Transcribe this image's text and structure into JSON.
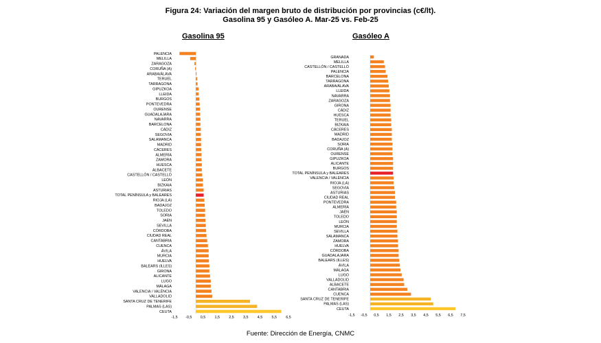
{
  "figure": {
    "title_line1": "Figura 24: Variación del margen bruto de distribución por provincias (c€/lt).",
    "title_line2": "Gasolina 95 y Gasóleo A. Mar-25 vs. Feb-25",
    "source": "Fuente: Dirección de Energía, CNMC"
  },
  "colors": {
    "regular": "#F58220",
    "highlight": "#E8202A",
    "canarias": "#F6B325",
    "ceuta": "#FFC72C",
    "grid": "#c8c8c8"
  },
  "chart_data": [
    {
      "type": "bar",
      "orientation": "horizontal",
      "title": "Gasolina 95",
      "xlim": [
        -1.5,
        6.5
      ],
      "xticks": [
        -1.5,
        -0.5,
        0.5,
        1.5,
        2.5,
        3.5,
        4.5,
        5.5,
        6.5
      ],
      "xtick_labels": [
        "-1,5",
        "-0,5",
        "0,5",
        "1,5",
        "2,5",
        "3,5",
        "4,5",
        "5,5",
        "6,5"
      ],
      "highlight": "TOTAL PENÍNSULA y BALEARES",
      "categories": [
        "PALENCIA",
        "MELILLA",
        "ZARAGOZA",
        "CORUÑA (A)",
        "ARABA/ÁLAVA",
        "TERUEL",
        "TARRAGONA",
        "GIPUZKOA",
        "LLEIDA",
        "BURGOS",
        "PONTEVEDRA",
        "OURENSE",
        "GUADALAJARA",
        "NAVARRA",
        "BARCELONA",
        "CÁDIZ",
        "SEGOVIA",
        "SALAMANCA",
        "MADRID",
        "CÁCERES",
        "ALMERÍA",
        "ZAMORA",
        "HUESCA",
        "ALBACETE",
        "CASTELLÓN / CASTELLÓ",
        "LEÓN",
        "BIZKAIA",
        "ASTURIAS",
        "TOTAL PENÍNSULA y BALEARES",
        "RIOJA (LA)",
        "BADAJOZ",
        "TOLEDO",
        "SORIA",
        "JAÉN",
        "SEVILLA",
        "CÓRDOBA",
        "CIUDAD REAL",
        "CANTABRIA",
        "CUENCA",
        "ÁVILA",
        "MURCIA",
        "HUELVA",
        "BALEARS (ILLES)",
        "GIRONA",
        "ALICANTE",
        "LUGO",
        "MÁLAGA",
        "VALENCIA / VALÈNCIA",
        "VALLADOLID",
        "SANTA CRUZ DE TENERIFE",
        "PALMAS (LAS)",
        "CEUTA"
      ],
      "values": [
        -1.15,
        -0.4,
        -0.1,
        -0.05,
        0.05,
        0.1,
        0.12,
        0.2,
        0.2,
        0.25,
        0.27,
        0.3,
        0.3,
        0.32,
        0.32,
        0.35,
        0.35,
        0.37,
        0.37,
        0.38,
        0.4,
        0.4,
        0.42,
        0.42,
        0.45,
        0.5,
        0.5,
        0.55,
        0.55,
        0.6,
        0.62,
        0.65,
        0.65,
        0.68,
        0.7,
        0.72,
        0.75,
        0.8,
        0.85,
        0.9,
        0.9,
        0.92,
        0.95,
        0.95,
        1.0,
        1.05,
        1.05,
        1.1,
        1.15,
        3.8,
        4.3,
        6.0
      ]
    },
    {
      "type": "bar",
      "orientation": "horizontal",
      "title": "Gasóleo A",
      "xlim": [
        -1.5,
        7.5
      ],
      "xticks": [
        -1.5,
        -0.5,
        0.5,
        1.5,
        2.5,
        3.5,
        4.5,
        5.5,
        6.5,
        7.5
      ],
      "xtick_labels": [
        "-1,5",
        "-0,5",
        "0,5",
        "1,5",
        "2,5",
        "3,5",
        "4,5",
        "5,5",
        "6,5",
        "7,5"
      ],
      "highlight": "TOTAL PENÍNSULA y BALEARES",
      "categories": [
        "GRANADA",
        "MELILLA",
        "CASTELLÓN / CASTELLÓ",
        "PALENCIA",
        "BARCELONA",
        "TARRAGONA",
        "ARABA/ÁLAVA",
        "LLEIDA",
        "NAVARRA",
        "ZARAGOZA",
        "GIRONA",
        "CÁDIZ",
        "HUESCA",
        "TERUEL",
        "BIZKAIA",
        "CÁCERES",
        "MADRID",
        "BADAJOZ",
        "SORIA",
        "CORUÑA (A)",
        "OURENSE",
        "GIPUZKOA",
        "ALICANTE",
        "BURGOS",
        "TOTAL PENÍNSULA y BALEARES",
        "VALENCIA / VALÈNCIA",
        "RIOJA (LA)",
        "SEGOVIA",
        "ASTURIAS",
        "CIUDAD REAL",
        "PONTEVEDRA",
        "ALMERÍA",
        "JAÉN",
        "TOLEDO",
        "LEÓN",
        "MURCIA",
        "SEVILLA",
        "SALAMANCA",
        "ZAMORA",
        "HUELVA",
        "CÓRDOBA",
        "GUADALAJARA",
        "BALEARS (ILLES)",
        "ÁVILA",
        "MÁLAGA",
        "LUGO",
        "VALLADOLID",
        "ALBACETE",
        "CANTABRIA",
        "CUENCA",
        "SANTA CRUZ DE TENERIFE",
        "PALMAS (LAS)",
        "CEUTA"
      ],
      "values": [
        0.3,
        1.1,
        1.2,
        1.25,
        1.4,
        1.45,
        1.5,
        1.55,
        1.6,
        1.6,
        1.65,
        1.65,
        1.65,
        1.7,
        1.7,
        1.75,
        1.75,
        1.75,
        1.8,
        1.8,
        1.8,
        1.85,
        1.85,
        1.85,
        1.85,
        1.9,
        1.9,
        1.95,
        2.0,
        2.0,
        2.1,
        2.1,
        2.15,
        2.15,
        2.15,
        2.15,
        2.2,
        2.2,
        2.25,
        2.25,
        2.3,
        2.3,
        2.35,
        2.4,
        2.45,
        2.55,
        2.7,
        2.75,
        3.0,
        3.3,
        4.9,
        5.1,
        6.9
      ]
    }
  ]
}
